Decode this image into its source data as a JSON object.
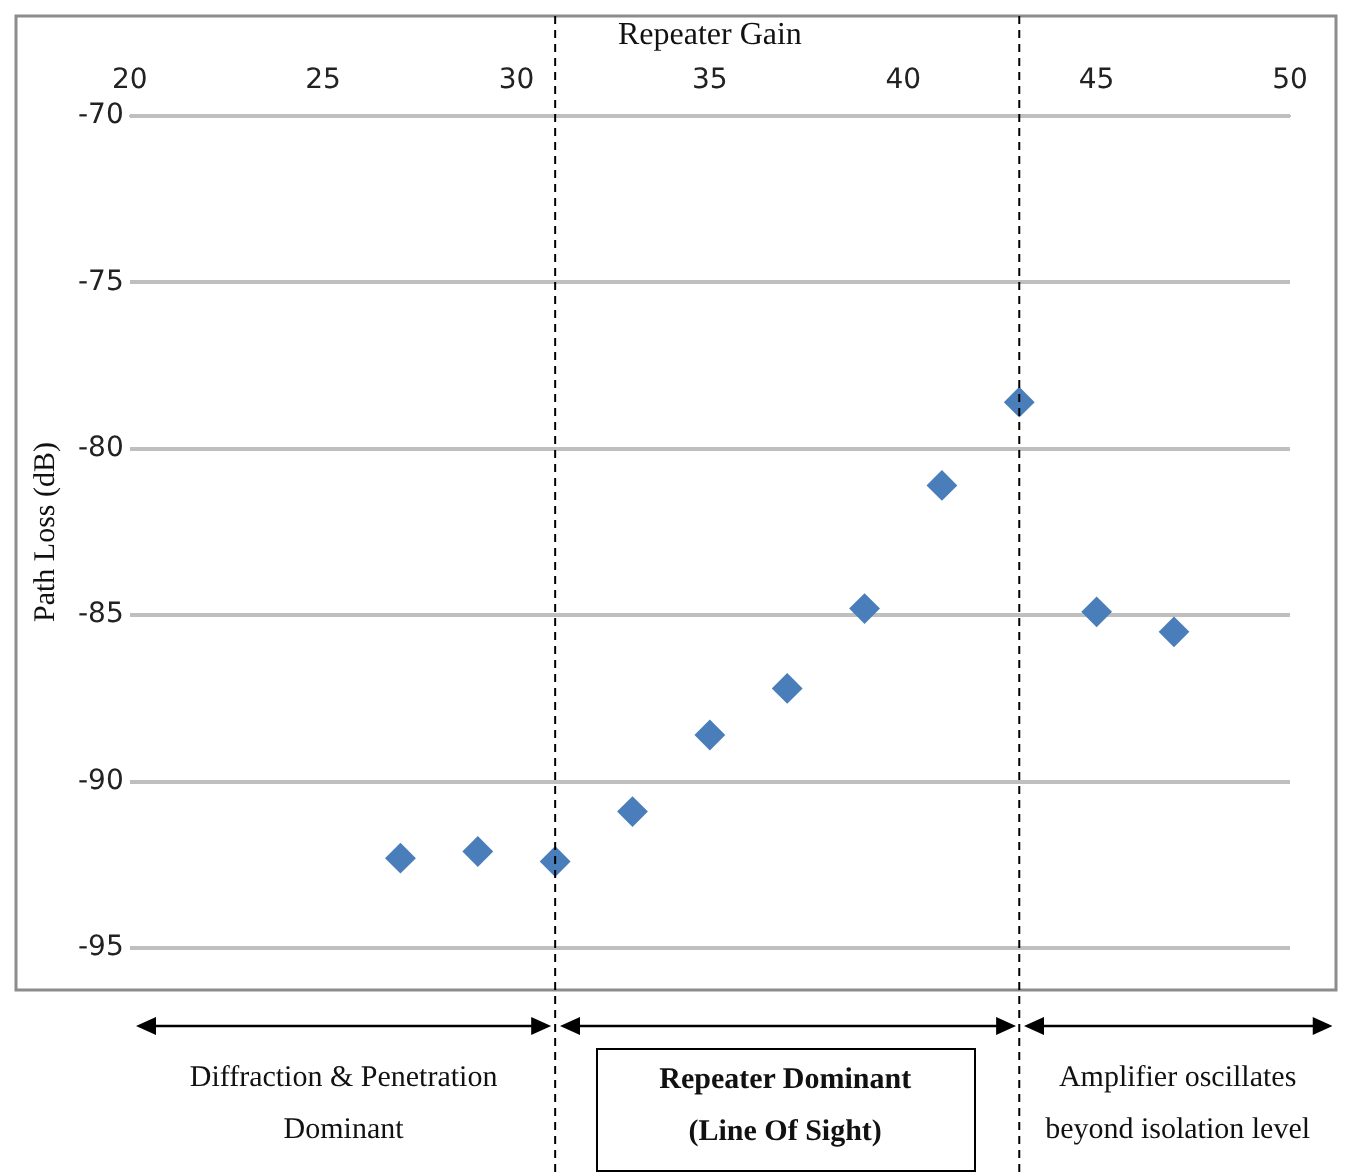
{
  "chart_data": {
    "type": "scatter",
    "xlabel": "Repeater Gain",
    "ylabel": "Path Loss (dB)",
    "x": [
      27,
      29,
      31,
      33,
      35,
      37,
      39,
      41,
      43,
      45,
      47
    ],
    "series": [
      {
        "color": "#4a7ebb",
        "values": [
          -92.3,
          -92.1,
          -92.4,
          -90.9,
          -88.6,
          -87.2,
          -84.8,
          -81.1,
          -78.6,
          -84.9,
          -85.5
        ]
      }
    ],
    "xlim": [
      20,
      50
    ],
    "xticks": [
      20,
      25,
      30,
      35,
      40,
      45,
      50
    ],
    "ylim": [
      -95,
      -70
    ],
    "yticks": [
      -95,
      -90,
      -85,
      -80,
      -75,
      -70
    ],
    "grid": "y",
    "legend": false,
    "marker": "diamond",
    "ref_lines": [
      {
        "axis": "x",
        "value": 31,
        "color": "#000000",
        "line_style": "dashed"
      },
      {
        "axis": "x",
        "value": 43,
        "color": "#000000",
        "line_style": "dashed"
      }
    ],
    "annotations": [
      "Diffraction & Penetration Dominant",
      "Repeater Dominant (Line Of Sight)",
      "Amplifier oscillates beyond isolation level"
    ]
  }
}
